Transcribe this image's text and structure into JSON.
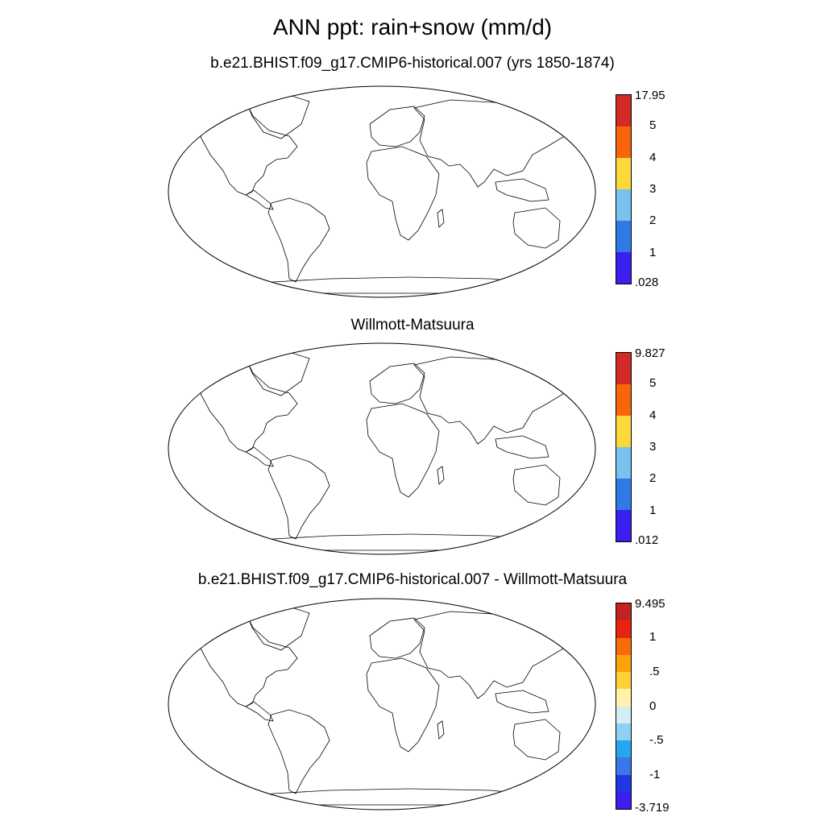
{
  "title": "ANN ppt: rain+snow (mm/d)",
  "panels": [
    {
      "id": "model",
      "title": "b.e21.BHIST.f09_g17.CMIP6-historical.007 (yrs 1850-1874)",
      "colorbar": {
        "colors": [
          "#3b1ef0",
          "#2e7be6",
          "#79c1ee",
          "#fcd83a",
          "#f9650a",
          "#d22a26"
        ],
        "labels": [
          ".028",
          "1",
          "2",
          "3",
          "4",
          "5",
          "17.95"
        ]
      }
    },
    {
      "id": "obs",
      "title": "Willmott-Matsuura",
      "colorbar": {
        "colors": [
          "#3b1ef0",
          "#2e7be6",
          "#79c1ee",
          "#fcd83a",
          "#f9650a",
          "#d22a26"
        ],
        "labels": [
          ".012",
          "1",
          "2",
          "3",
          "4",
          "5",
          "9.827"
        ]
      }
    },
    {
      "id": "diff",
      "title": "b.e21.BHIST.f09_g17.CMIP6-historical.007 - Willmott-Matsuura",
      "colorbar": {
        "colors": [
          "#3b1ef0",
          "#2336e4",
          "#3a78e8",
          "#27a6f0",
          "#8ed0f2",
          "#d2ecf8",
          "#fff3a8",
          "#fcd13a",
          "#fba40a",
          "#f86a0a",
          "#e8240e",
          "#c42222"
        ],
        "labels": [
          "-3.719",
          "-1",
          "-.5",
          "0",
          ".5",
          "1",
          "9.495"
        ],
        "label_positions": [
          0,
          2,
          4,
          6,
          8,
          10,
          12
        ]
      }
    }
  ],
  "continents": [
    "North America",
    "South America",
    "Europe",
    "Africa",
    "Asia",
    "Australia",
    "Antarctica",
    "Greenland"
  ]
}
